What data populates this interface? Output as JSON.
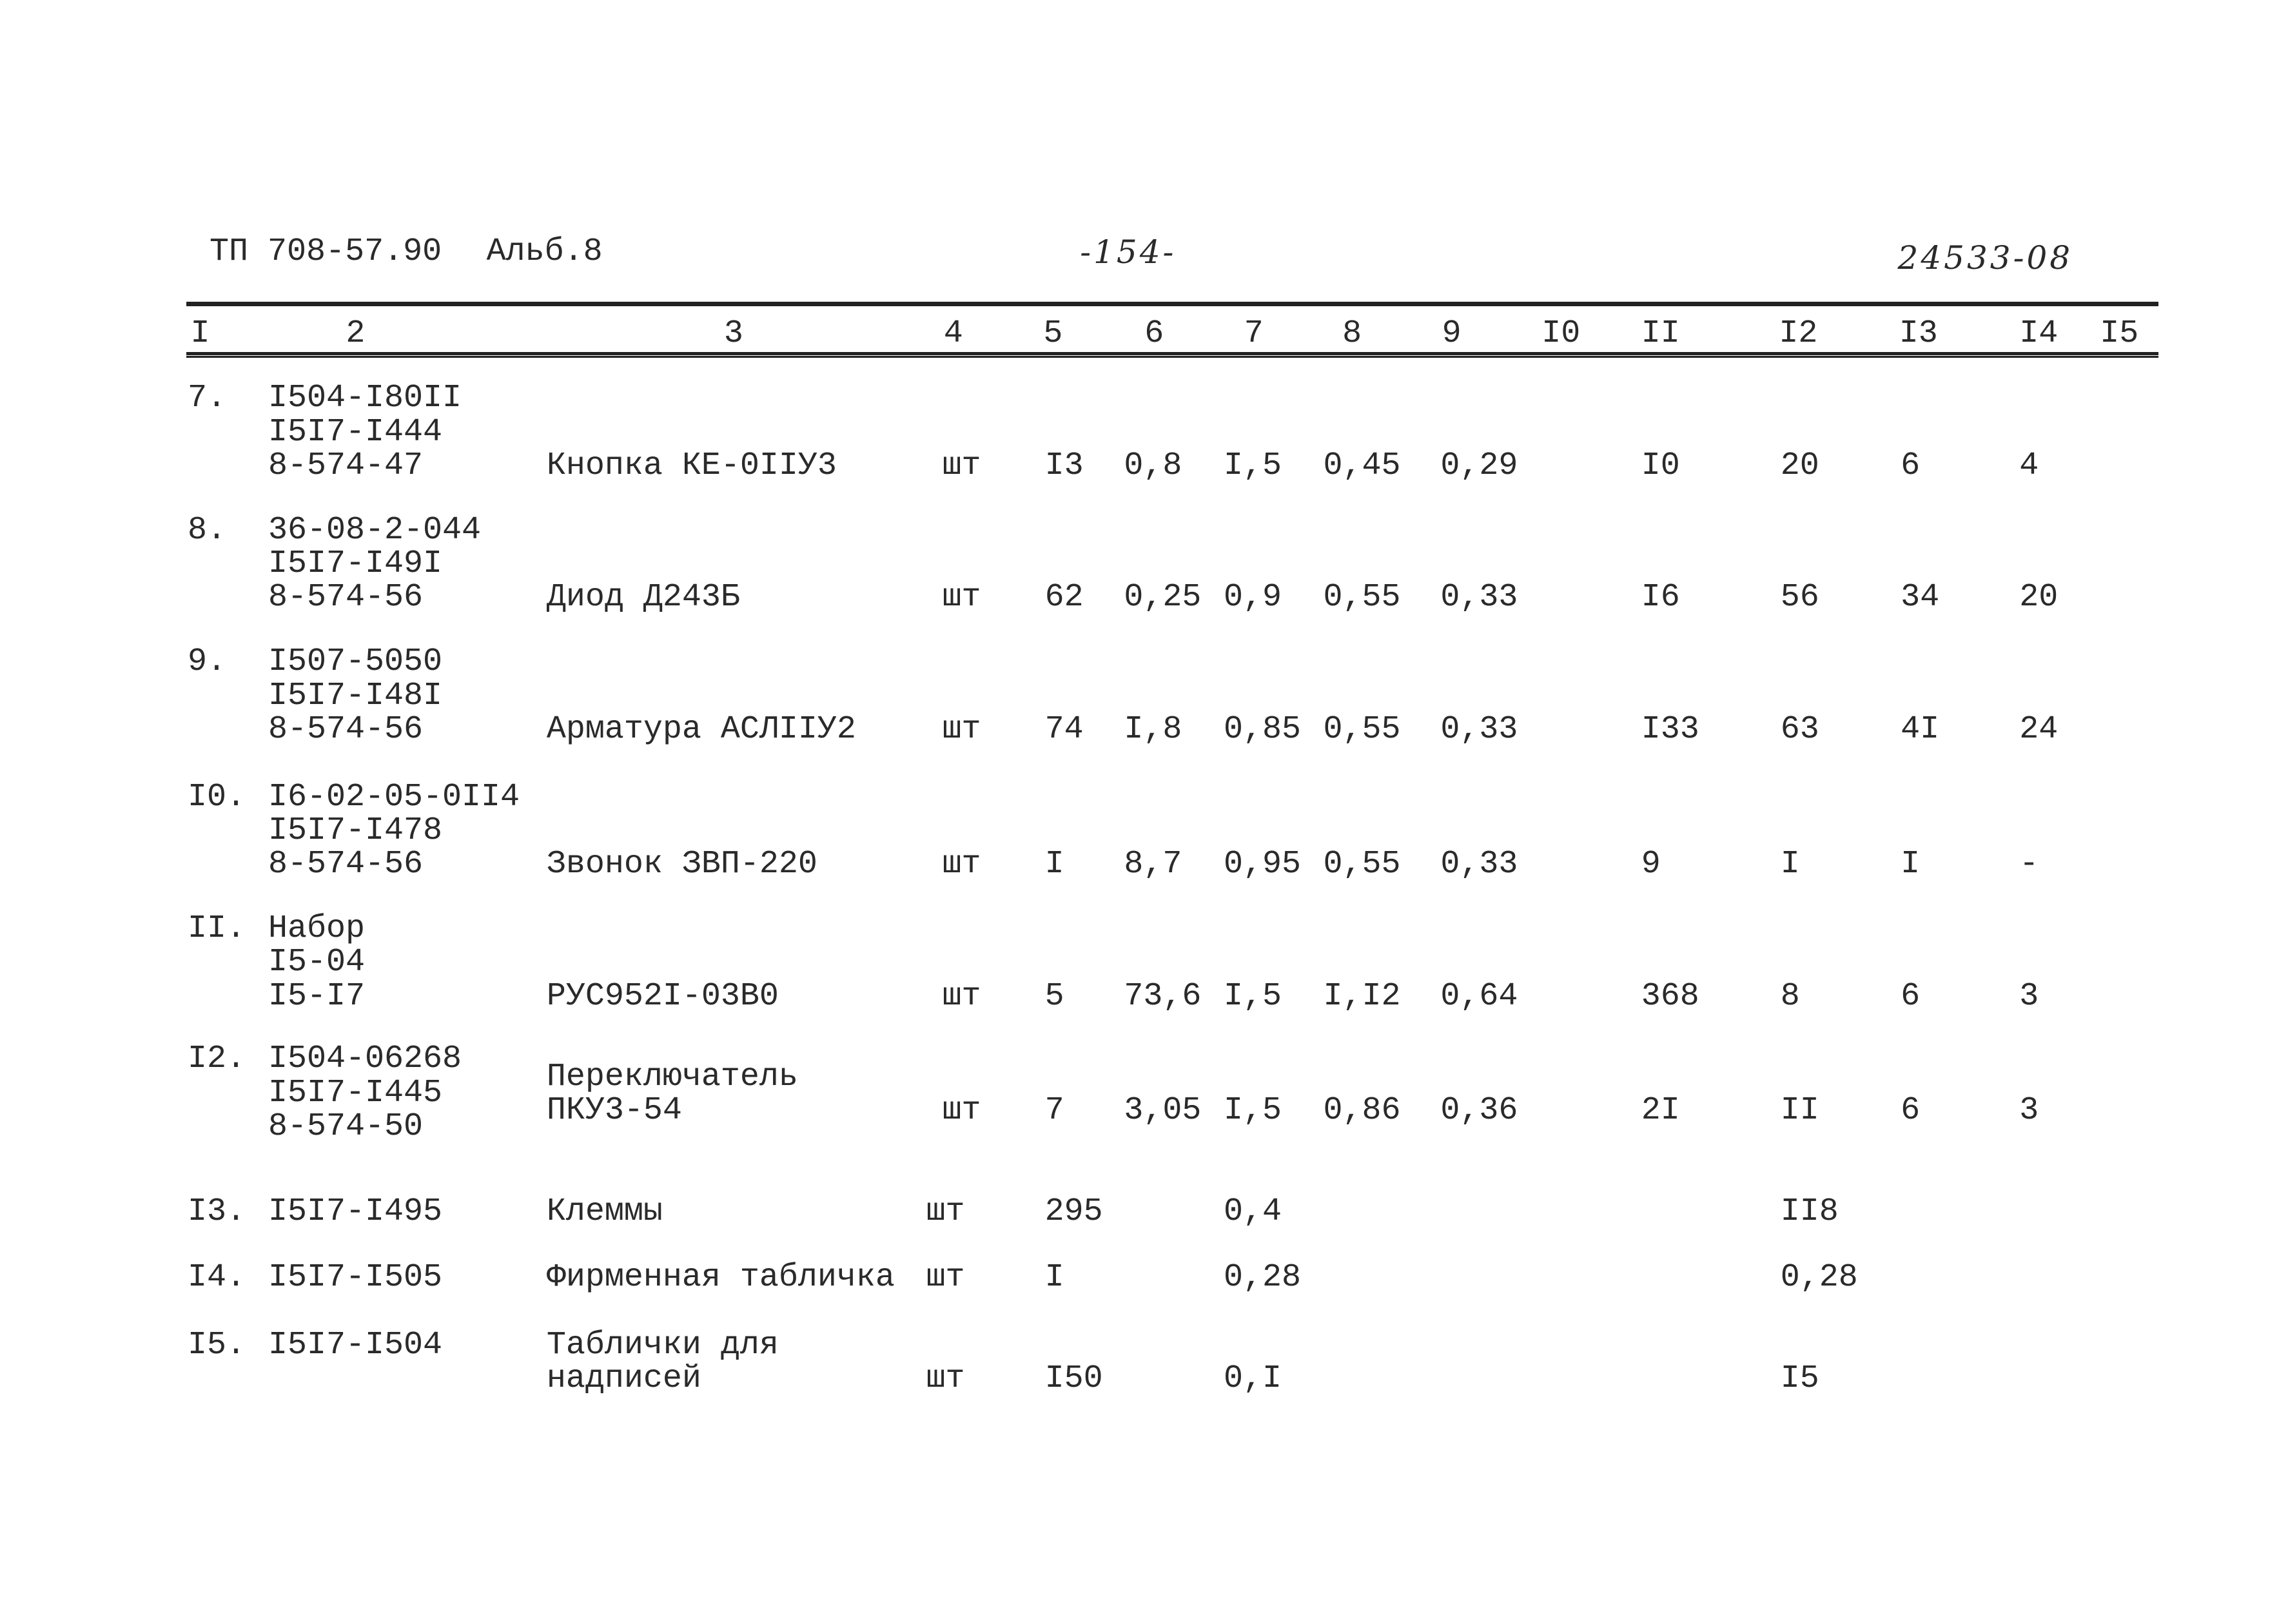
{
  "header": {
    "doc": "ТП 708-57.90",
    "album": "Альб.8",
    "page": "-154-",
    "code": "24533-08"
  },
  "table": {
    "columns": [
      "I",
      "2",
      "3",
      "4",
      "5",
      "6",
      "7",
      "8",
      "9",
      "I0",
      "II",
      "I2",
      "I3",
      "I4",
      "I5"
    ],
    "rows": [
      [
        "7.",
        [
          "I504-I80II",
          "I5I7-I444",
          "8-574-47"
        ],
        [
          "Кнопка КЕ-0IIУ3"
        ],
        "шт",
        "I3",
        "0,8",
        "I,5",
        "0,45",
        "0,29",
        null,
        "I0",
        "20",
        "6",
        "4",
        null
      ],
      [
        "8.",
        [
          "36-08-2-044",
          "I5I7-I49I",
          "8-574-56"
        ],
        [
          "Диод Д243Б"
        ],
        "шт",
        "62",
        "0,25",
        "0,9",
        "0,55",
        "0,33",
        null,
        "I6",
        "56",
        "34",
        "20",
        null
      ],
      [
        "9.",
        [
          "I507-5050",
          "I5I7-I48I",
          "8-574-56"
        ],
        [
          "Арматура АСЛIIУ2"
        ],
        "шт",
        "74",
        "I,8",
        "0,85",
        "0,55",
        "0,33",
        null,
        "I33",
        "63",
        "4I",
        "24",
        null
      ],
      [
        "I0.",
        [
          "I6-02-05-0II4",
          "I5I7-I478",
          "8-574-56"
        ],
        [
          "Звонок ЗВП-220"
        ],
        "шт",
        "I",
        "8,7",
        "0,95",
        "0,55",
        "0,33",
        null,
        "9",
        "I",
        "I",
        "-",
        null
      ],
      [
        "II.",
        [
          "Набор",
          "I5-04",
          "I5-I7"
        ],
        [
          "РУС952I-03В0"
        ],
        "шт",
        "5",
        "73,6",
        "I,5",
        "I,I2",
        "0,64",
        null,
        "368",
        "8",
        "6",
        "3",
        null
      ],
      [
        "I2.",
        [
          "I504-06268",
          "I5I7-I445",
          "8-574-50"
        ],
        [
          "Переключатель",
          "ПКУ3-54"
        ],
        "шт",
        "7",
        "3,05",
        "I,5",
        "0,86",
        "0,36",
        null,
        "2I",
        "II",
        "6",
        "3",
        null
      ],
      [
        "I3.",
        [
          "I5I7-I495"
        ],
        [
          "Клеммы"
        ],
        "шт",
        "295",
        null,
        "0,4",
        null,
        null,
        null,
        null,
        "II8",
        null,
        null,
        null
      ],
      [
        "I4.",
        [
          "I5I7-I505"
        ],
        [
          "Фирменная табличка"
        ],
        "шт",
        "I",
        null,
        "0,28",
        null,
        null,
        null,
        null,
        "0,28",
        null,
        null,
        null
      ],
      [
        "I5.",
        [
          "I5I7-I504"
        ],
        [
          "Таблички для",
          "надписей"
        ],
        "шт",
        "I50",
        null,
        "0,I",
        null,
        null,
        null,
        null,
        "I5",
        null,
        null,
        null
      ]
    ]
  }
}
